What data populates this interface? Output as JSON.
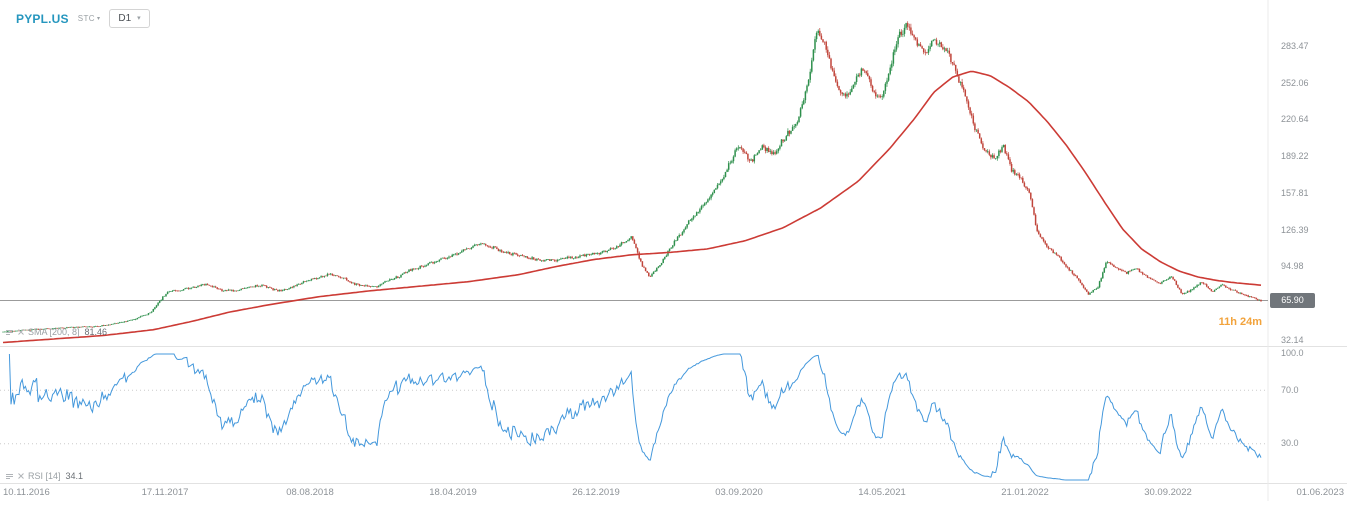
{
  "colors": {
    "symbol": "#2596be",
    "candle_up": "#2e8f4c",
    "candle_down": "#c0443a",
    "sma": "#cc3b35",
    "rsi": "#4498dc",
    "price_line": "#9b9b9b",
    "countdown": "#f2a33c",
    "badge_bg": "#71767b",
    "axis_text": "#8d9297"
  },
  "header": {
    "symbol": "PYPL.US",
    "provider": "STC",
    "timeframe": "D1"
  },
  "indicators": {
    "sma": {
      "label": "SMA [200, 8]",
      "value": "81.46"
    },
    "rsi": {
      "label": "RSI [14]",
      "value": "34.1",
      "level_labels": [
        "100.0",
        "70.0",
        "30.0"
      ]
    }
  },
  "chart_data": {
    "type": "candlestick",
    "symbol": "PYPL.US",
    "timeframe": "D1",
    "current_price": 65.9,
    "current_price_label": "65.90",
    "time_to_close": "11h 24m",
    "y_ticks": [
      283.47,
      252.06,
      220.64,
      189.22,
      157.81,
      126.39,
      94.98,
      32.14
    ],
    "y_tick_labels": [
      "283.47",
      "252.06",
      "220.64",
      "189.22",
      "157.81",
      "126.39",
      "94.98",
      "32.14"
    ],
    "x_tick_labels": [
      "10.11.2016",
      "17.11.2017",
      "08.08.2018",
      "18.04.2019",
      "26.12.2019",
      "03.09.2020",
      "14.05.2021",
      "21.01.2022",
      "30.09.2022",
      "01.06.2023"
    ],
    "ylim": [
      25,
      315
    ],
    "sma_period": 200,
    "sma_last": 81.46,
    "rsi_period": 14,
    "rsi_last": 34.1,
    "rsi_levels": [
      100,
      70,
      30
    ],
    "price_path": [
      [
        0.0,
        39
      ],
      [
        0.02,
        41
      ],
      [
        0.045,
        42
      ],
      [
        0.07,
        44
      ],
      [
        0.09,
        47
      ],
      [
        0.105,
        50
      ],
      [
        0.118,
        56
      ],
      [
        0.13,
        72
      ],
      [
        0.145,
        75
      ],
      [
        0.16,
        79
      ],
      [
        0.175,
        74
      ],
      [
        0.19,
        76
      ],
      [
        0.205,
        79
      ],
      [
        0.22,
        74
      ],
      [
        0.235,
        79
      ],
      [
        0.245,
        84
      ],
      [
        0.26,
        88
      ],
      [
        0.272,
        85
      ],
      [
        0.283,
        79
      ],
      [
        0.295,
        77
      ],
      [
        0.31,
        84
      ],
      [
        0.325,
        92
      ],
      [
        0.34,
        99
      ],
      [
        0.355,
        104
      ],
      [
        0.368,
        111
      ],
      [
        0.382,
        117
      ],
      [
        0.395,
        110
      ],
      [
        0.41,
        105
      ],
      [
        0.425,
        101
      ],
      [
        0.44,
        100
      ],
      [
        0.455,
        104
      ],
      [
        0.474,
        107
      ],
      [
        0.49,
        114
      ],
      [
        0.5,
        121
      ],
      [
        0.508,
        96
      ],
      [
        0.514,
        86
      ],
      [
        0.524,
        100
      ],
      [
        0.534,
        118
      ],
      [
        0.545,
        134
      ],
      [
        0.56,
        152
      ],
      [
        0.572,
        170
      ],
      [
        0.585,
        200
      ],
      [
        0.594,
        184
      ],
      [
        0.603,
        196
      ],
      [
        0.612,
        190
      ],
      [
        0.622,
        205
      ],
      [
        0.632,
        218
      ],
      [
        0.64,
        252
      ],
      [
        0.647,
        298
      ],
      [
        0.654,
        284
      ],
      [
        0.661,
        256
      ],
      [
        0.669,
        240
      ],
      [
        0.677,
        252
      ],
      [
        0.684,
        262
      ],
      [
        0.691,
        247
      ],
      [
        0.698,
        239
      ],
      [
        0.705,
        264
      ],
      [
        0.712,
        294
      ],
      [
        0.718,
        306
      ],
      [
        0.726,
        289
      ],
      [
        0.733,
        277
      ],
      [
        0.74,
        288
      ],
      [
        0.748,
        279
      ],
      [
        0.756,
        265
      ],
      [
        0.764,
        241
      ],
      [
        0.772,
        214
      ],
      [
        0.78,
        193
      ],
      [
        0.788,
        186
      ],
      [
        0.795,
        197
      ],
      [
        0.802,
        177
      ],
      [
        0.809,
        171
      ],
      [
        0.816,
        160
      ],
      [
        0.822,
        126
      ],
      [
        0.829,
        114
      ],
      [
        0.837,
        107
      ],
      [
        0.846,
        95
      ],
      [
        0.855,
        84
      ],
      [
        0.863,
        71
      ],
      [
        0.87,
        76
      ],
      [
        0.877,
        99
      ],
      [
        0.885,
        93
      ],
      [
        0.893,
        89
      ],
      [
        0.901,
        93
      ],
      [
        0.91,
        85
      ],
      [
        0.92,
        81
      ],
      [
        0.929,
        87
      ],
      [
        0.937,
        71
      ],
      [
        0.945,
        76
      ],
      [
        0.953,
        82
      ],
      [
        0.961,
        73
      ],
      [
        0.969,
        80
      ],
      [
        0.977,
        75
      ],
      [
        0.985,
        71
      ],
      [
        0.992,
        69
      ],
      [
        1.0,
        66
      ]
    ],
    "sma200_path": [
      [
        0.0,
        30
      ],
      [
        0.04,
        33
      ],
      [
        0.08,
        36
      ],
      [
        0.12,
        41
      ],
      [
        0.15,
        48
      ],
      [
        0.18,
        56
      ],
      [
        0.21,
        62
      ],
      [
        0.25,
        69
      ],
      [
        0.29,
        74
      ],
      [
        0.33,
        78
      ],
      [
        0.37,
        82
      ],
      [
        0.41,
        88
      ],
      [
        0.44,
        95
      ],
      [
        0.47,
        101
      ],
      [
        0.5,
        105
      ],
      [
        0.53,
        107
      ],
      [
        0.56,
        110
      ],
      [
        0.59,
        117
      ],
      [
        0.62,
        128
      ],
      [
        0.65,
        145
      ],
      [
        0.68,
        168
      ],
      [
        0.705,
        196
      ],
      [
        0.725,
        222
      ],
      [
        0.74,
        244
      ],
      [
        0.755,
        257
      ],
      [
        0.77,
        262
      ],
      [
        0.785,
        258
      ],
      [
        0.8,
        248
      ],
      [
        0.815,
        236
      ],
      [
        0.83,
        219
      ],
      [
        0.845,
        199
      ],
      [
        0.86,
        176
      ],
      [
        0.875,
        151
      ],
      [
        0.89,
        127
      ],
      [
        0.905,
        110
      ],
      [
        0.92,
        99
      ],
      [
        0.935,
        91
      ],
      [
        0.95,
        86
      ],
      [
        0.965,
        83
      ],
      [
        0.98,
        81
      ],
      [
        1.0,
        79
      ]
    ]
  }
}
